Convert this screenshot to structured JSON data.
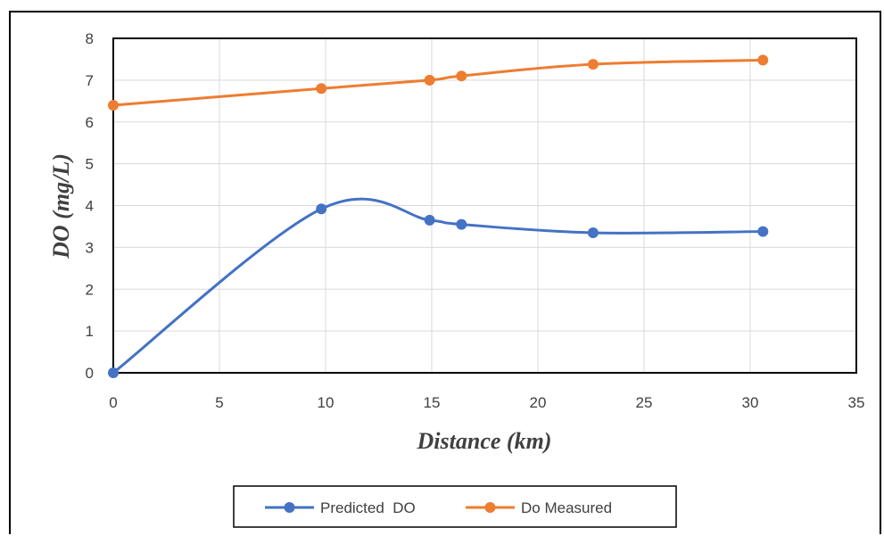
{
  "chart_data": {
    "type": "line",
    "title": "",
    "xlabel": "Distance (km)",
    "ylabel": "DO (mg/L)",
    "xlim": [
      0,
      35
    ],
    "ylim": [
      0,
      8
    ],
    "xticks": [
      "0",
      "5",
      "10",
      "15",
      "20",
      "25",
      "30",
      "35"
    ],
    "yticks": [
      "0",
      "1",
      "2",
      "3",
      "4",
      "5",
      "6",
      "7",
      "8"
    ],
    "grid": true,
    "smooth": true,
    "legend_position": "bottom",
    "series": [
      {
        "name": "Predicted  DO",
        "color": "#4472C4",
        "marker": "circle",
        "x": [
          0,
          9.8,
          14.9,
          16.4,
          22.6,
          30.6
        ],
        "y": [
          0,
          3.92,
          3.65,
          3.55,
          3.35,
          3.38
        ]
      },
      {
        "name": "Do Measured",
        "color": "#ED7D31",
        "marker": "circle",
        "x": [
          0,
          9.8,
          14.9,
          16.4,
          22.6,
          30.6
        ],
        "y": [
          6.4,
          6.8,
          7.0,
          7.1,
          7.38,
          7.48
        ]
      }
    ]
  }
}
